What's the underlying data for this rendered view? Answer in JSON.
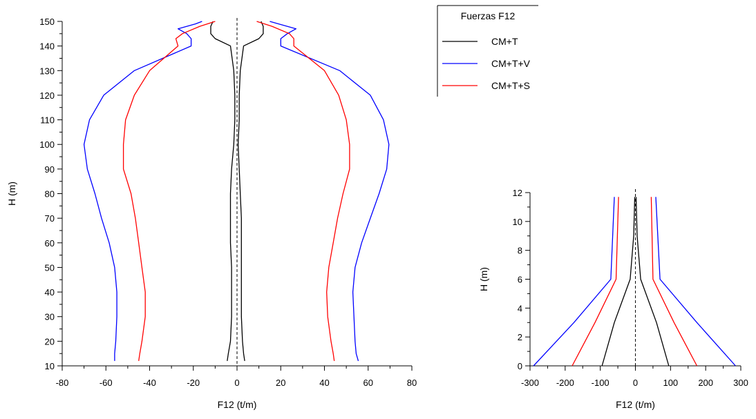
{
  "legend": {
    "title": "Fuerzas F12",
    "entries": [
      {
        "label": "CM+T",
        "color": "#000000"
      },
      {
        "label": "CM+T+V",
        "color": "#0000ff"
      },
      {
        "label": "CM+T+S",
        "color": "#ff0000"
      }
    ]
  },
  "chart_data": [
    {
      "type": "line",
      "xlabel": "F12 (t/m)",
      "ylabel": "H (m)",
      "xlim": [
        -80,
        80
      ],
      "ylim": [
        10,
        150
      ],
      "xticks": [
        -80,
        -60,
        -40,
        -20,
        0,
        20,
        40,
        60,
        80
      ],
      "yticks": [
        10,
        20,
        30,
        40,
        50,
        60,
        70,
        80,
        90,
        100,
        110,
        120,
        130,
        140,
        150
      ],
      "reference_line": {
        "x": 0,
        "style": "dashed"
      },
      "series": [
        {
          "name": "CM+T",
          "color": "#000000",
          "side": "left",
          "points": [
            [
              -4.5,
              12
            ],
            [
              -4,
              15
            ],
            [
              -3,
              20
            ],
            [
              -2.5,
              30
            ],
            [
              -2.5,
              40
            ],
            [
              -2.5,
              50
            ],
            [
              -3,
              60
            ],
            [
              -3,
              70
            ],
            [
              -3,
              80
            ],
            [
              -2.5,
              90
            ],
            [
              -1.5,
              100
            ],
            [
              -1,
              110
            ],
            [
              -1,
              120
            ],
            [
              -1.5,
              130
            ],
            [
              -3,
              140
            ],
            [
              -10,
              143
            ],
            [
              -12,
              145
            ],
            [
              -12,
              148
            ],
            [
              -11,
              150
            ]
          ]
        },
        {
          "name": "CM+T",
          "color": "#000000",
          "side": "right",
          "points": [
            [
              3.5,
              12
            ],
            [
              3,
              15
            ],
            [
              2.5,
              20
            ],
            [
              2,
              30
            ],
            [
              2,
              40
            ],
            [
              2,
              50
            ],
            [
              2,
              60
            ],
            [
              2,
              70
            ],
            [
              1.5,
              80
            ],
            [
              1,
              90
            ],
            [
              0.5,
              100
            ],
            [
              1,
              110
            ],
            [
              1,
              120
            ],
            [
              1.5,
              130
            ],
            [
              3,
              140
            ],
            [
              10,
              143
            ],
            [
              12,
              145
            ],
            [
              12,
              148
            ],
            [
              11,
              150
            ]
          ]
        },
        {
          "name": "CM+T+V",
          "color": "#0000ff",
          "side": "left",
          "points": [
            [
              -56,
              12
            ],
            [
              -56,
              15
            ],
            [
              -55.5,
              20
            ],
            [
              -55,
              30
            ],
            [
              -55,
              40
            ],
            [
              -56,
              50
            ],
            [
              -58.5,
              60
            ],
            [
              -62,
              70
            ],
            [
              -65,
              80
            ],
            [
              -68.5,
              90
            ],
            [
              -70,
              100
            ],
            [
              -67.5,
              110
            ],
            [
              -61,
              120
            ],
            [
              -47,
              130
            ],
            [
              -21,
              140
            ],
            [
              -21,
              143
            ],
            [
              -23,
              145
            ],
            [
              -27,
              147
            ],
            [
              -19,
              149
            ],
            [
              -16,
              150
            ]
          ]
        },
        {
          "name": "CM+T+V",
          "color": "#0000ff",
          "side": "right",
          "points": [
            [
              55.5,
              12
            ],
            [
              54.5,
              15
            ],
            [
              54,
              20
            ],
            [
              53.5,
              30
            ],
            [
              53,
              40
            ],
            [
              54,
              50
            ],
            [
              57,
              60
            ],
            [
              61,
              70
            ],
            [
              65,
              80
            ],
            [
              68.5,
              90
            ],
            [
              69.5,
              100
            ],
            [
              67,
              110
            ],
            [
              61,
              120
            ],
            [
              47,
              130
            ],
            [
              20,
              140
            ],
            [
              20,
              143
            ],
            [
              23,
              145
            ],
            [
              27,
              147
            ],
            [
              19,
              149
            ],
            [
              15,
              150
            ]
          ]
        },
        {
          "name": "CM+T+S",
          "color": "#ff0000",
          "side": "left",
          "points": [
            [
              -45,
              12
            ],
            [
              -44.5,
              15
            ],
            [
              -43.5,
              20
            ],
            [
              -42,
              30
            ],
            [
              -42,
              40
            ],
            [
              -43.5,
              50
            ],
            [
              -45,
              60
            ],
            [
              -46.5,
              70
            ],
            [
              -48.5,
              80
            ],
            [
              -52,
              90
            ],
            [
              -52,
              100
            ],
            [
              -51,
              110
            ],
            [
              -47,
              120
            ],
            [
              -40,
              130
            ],
            [
              -27,
              140
            ],
            [
              -28,
              143
            ],
            [
              -25,
              145
            ],
            [
              -17,
              148
            ],
            [
              -10,
              150
            ]
          ]
        },
        {
          "name": "CM+T+S",
          "color": "#ff0000",
          "side": "right",
          "points": [
            [
              44.5,
              12
            ],
            [
              44,
              15
            ],
            [
              43,
              20
            ],
            [
              41.5,
              30
            ],
            [
              41,
              40
            ],
            [
              42,
              50
            ],
            [
              44,
              60
            ],
            [
              46,
              70
            ],
            [
              48.5,
              80
            ],
            [
              51.5,
              90
            ],
            [
              51.5,
              100
            ],
            [
              50,
              110
            ],
            [
              46.5,
              120
            ],
            [
              40,
              130
            ],
            [
              26,
              140
            ],
            [
              26,
              143
            ],
            [
              24,
              145
            ],
            [
              16,
              148
            ],
            [
              9,
              150
            ]
          ]
        }
      ]
    },
    {
      "type": "line",
      "xlabel": "F12 (t/m)",
      "ylabel": "H (m)",
      "xlim": [
        -300,
        300
      ],
      "ylim": [
        0,
        12
      ],
      "xticks": [
        -300,
        -200,
        -100,
        0,
        100,
        200,
        300
      ],
      "yticks": [
        0,
        2,
        4,
        6,
        8,
        10,
        12
      ],
      "reference_line": {
        "x": 0,
        "style": "dashed"
      },
      "series": [
        {
          "name": "CM+T",
          "color": "#000000",
          "side": "left",
          "points": [
            [
              -95,
              0
            ],
            [
              -60,
              3
            ],
            [
              -15,
              6
            ],
            [
              -5,
              9
            ],
            [
              -2,
              11.7
            ]
          ]
        },
        {
          "name": "CM+T",
          "color": "#000000",
          "side": "right",
          "points": [
            [
              95,
              0
            ],
            [
              60,
              3
            ],
            [
              15,
              6
            ],
            [
              5,
              9
            ],
            [
              2,
              11.7
            ]
          ]
        },
        {
          "name": "CM+T+V",
          "color": "#0000ff",
          "side": "left",
          "points": [
            [
              -290,
              0
            ],
            [
              -175,
              3
            ],
            [
              -70,
              6
            ],
            [
              -60,
              11.7
            ]
          ]
        },
        {
          "name": "CM+T+V",
          "color": "#0000ff",
          "side": "right",
          "points": [
            [
              285,
              0
            ],
            [
              175,
              3
            ],
            [
              70,
              6
            ],
            [
              58,
              11.7
            ]
          ]
        },
        {
          "name": "CM+T+S",
          "color": "#ff0000",
          "side": "left",
          "points": [
            [
              -180,
              0
            ],
            [
              -115,
              3
            ],
            [
              -55,
              6
            ],
            [
              -48,
              11.7
            ]
          ]
        },
        {
          "name": "CM+T+S",
          "color": "#ff0000",
          "side": "right",
          "points": [
            [
              175,
              0
            ],
            [
              110,
              3
            ],
            [
              50,
              6
            ],
            [
              45,
              11.7
            ]
          ]
        }
      ]
    }
  ]
}
